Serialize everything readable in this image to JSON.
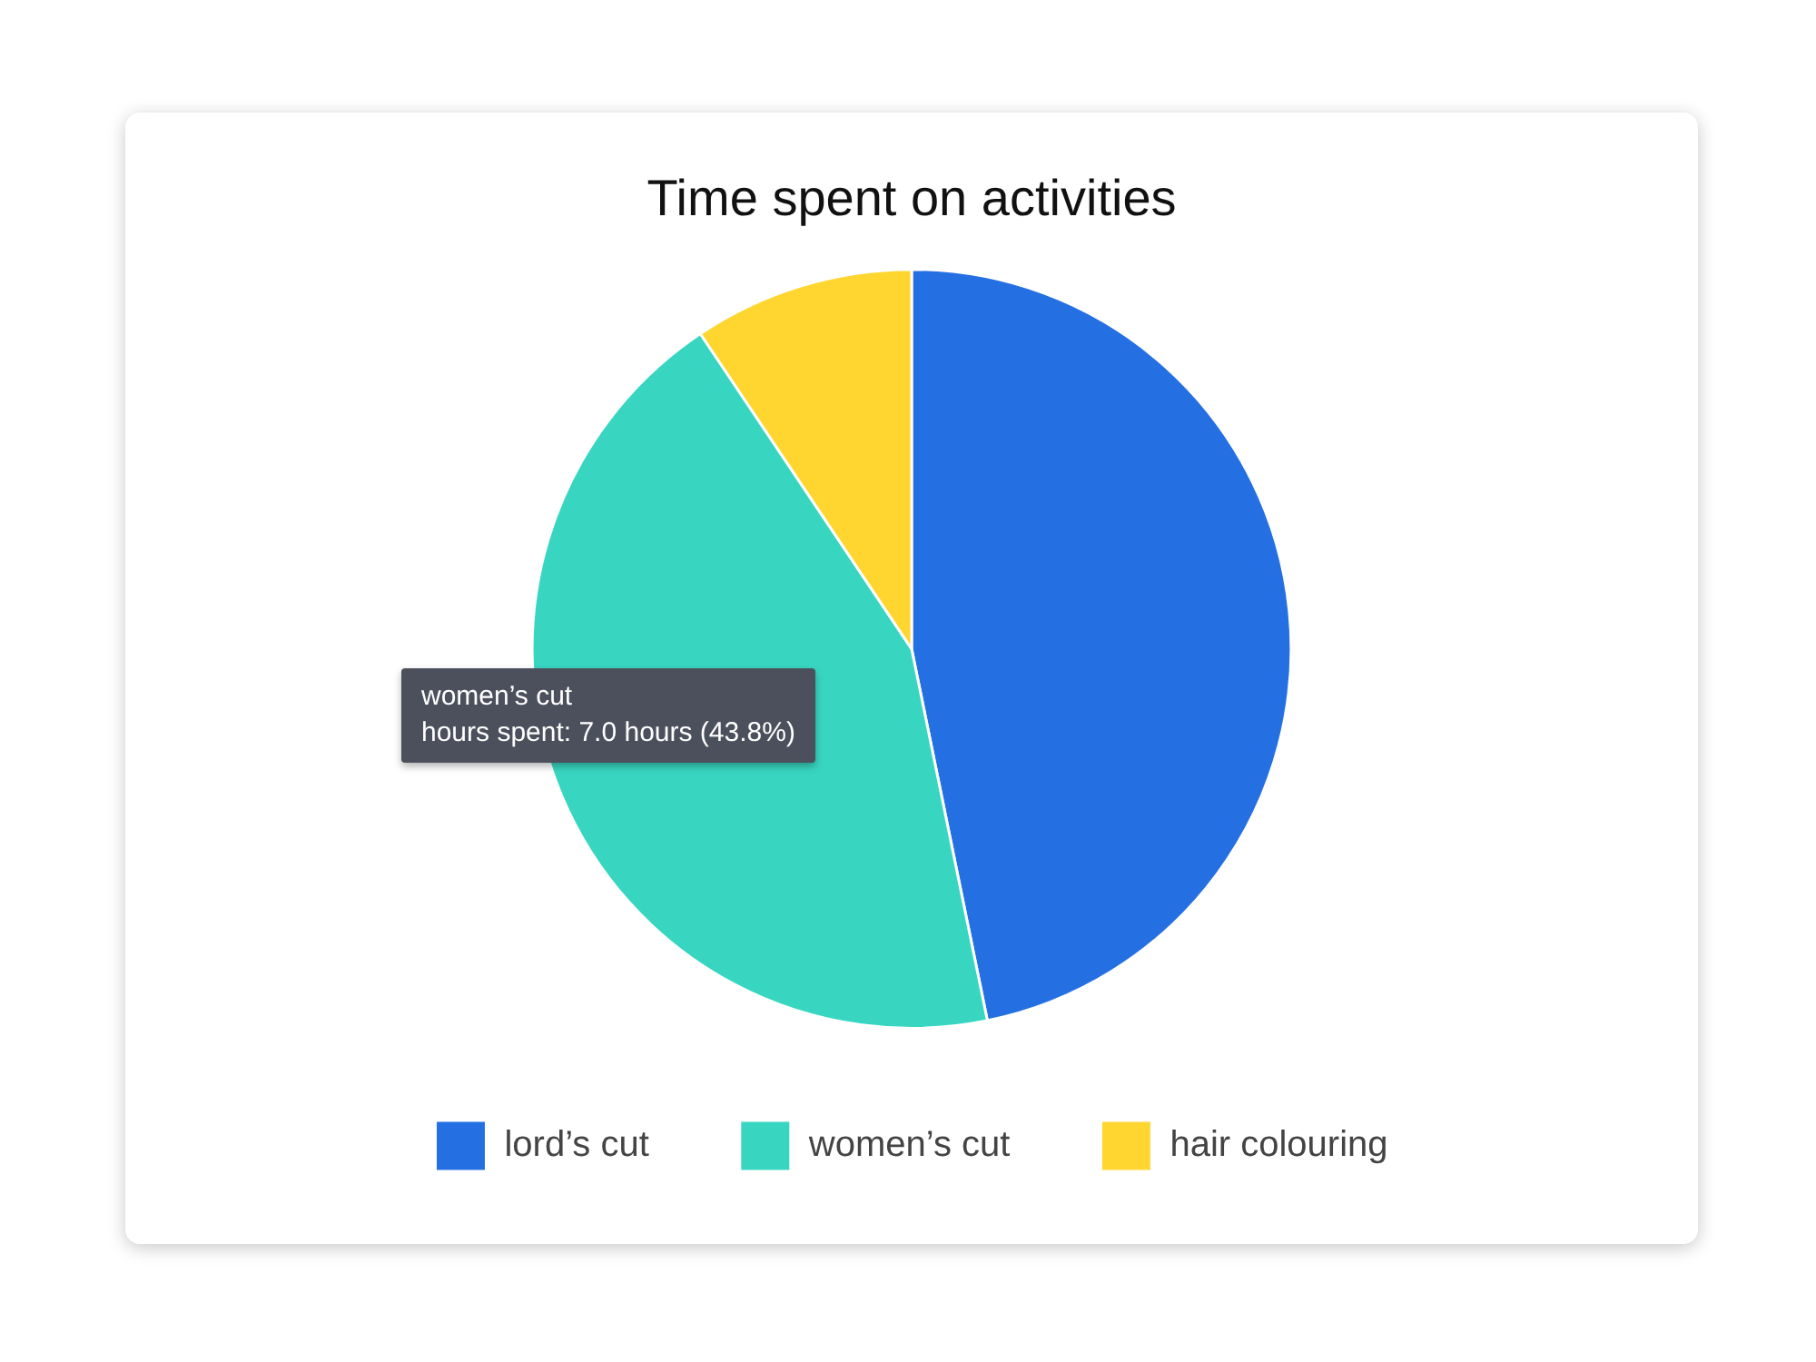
{
  "chart_data": {
    "type": "pie",
    "title": "Time spent on activities",
    "categories": [
      "lord’s cut",
      "women’s cut",
      "hair colouring"
    ],
    "values": [
      46.8,
      43.8,
      9.4
    ],
    "colors": [
      "#2470e3",
      "#38d6c1",
      "#ffd630"
    ],
    "legend": "bottom",
    "annotations": [
      "women’s cut",
      "hours spent: 7.0 hours (43.8%)"
    ]
  }
}
